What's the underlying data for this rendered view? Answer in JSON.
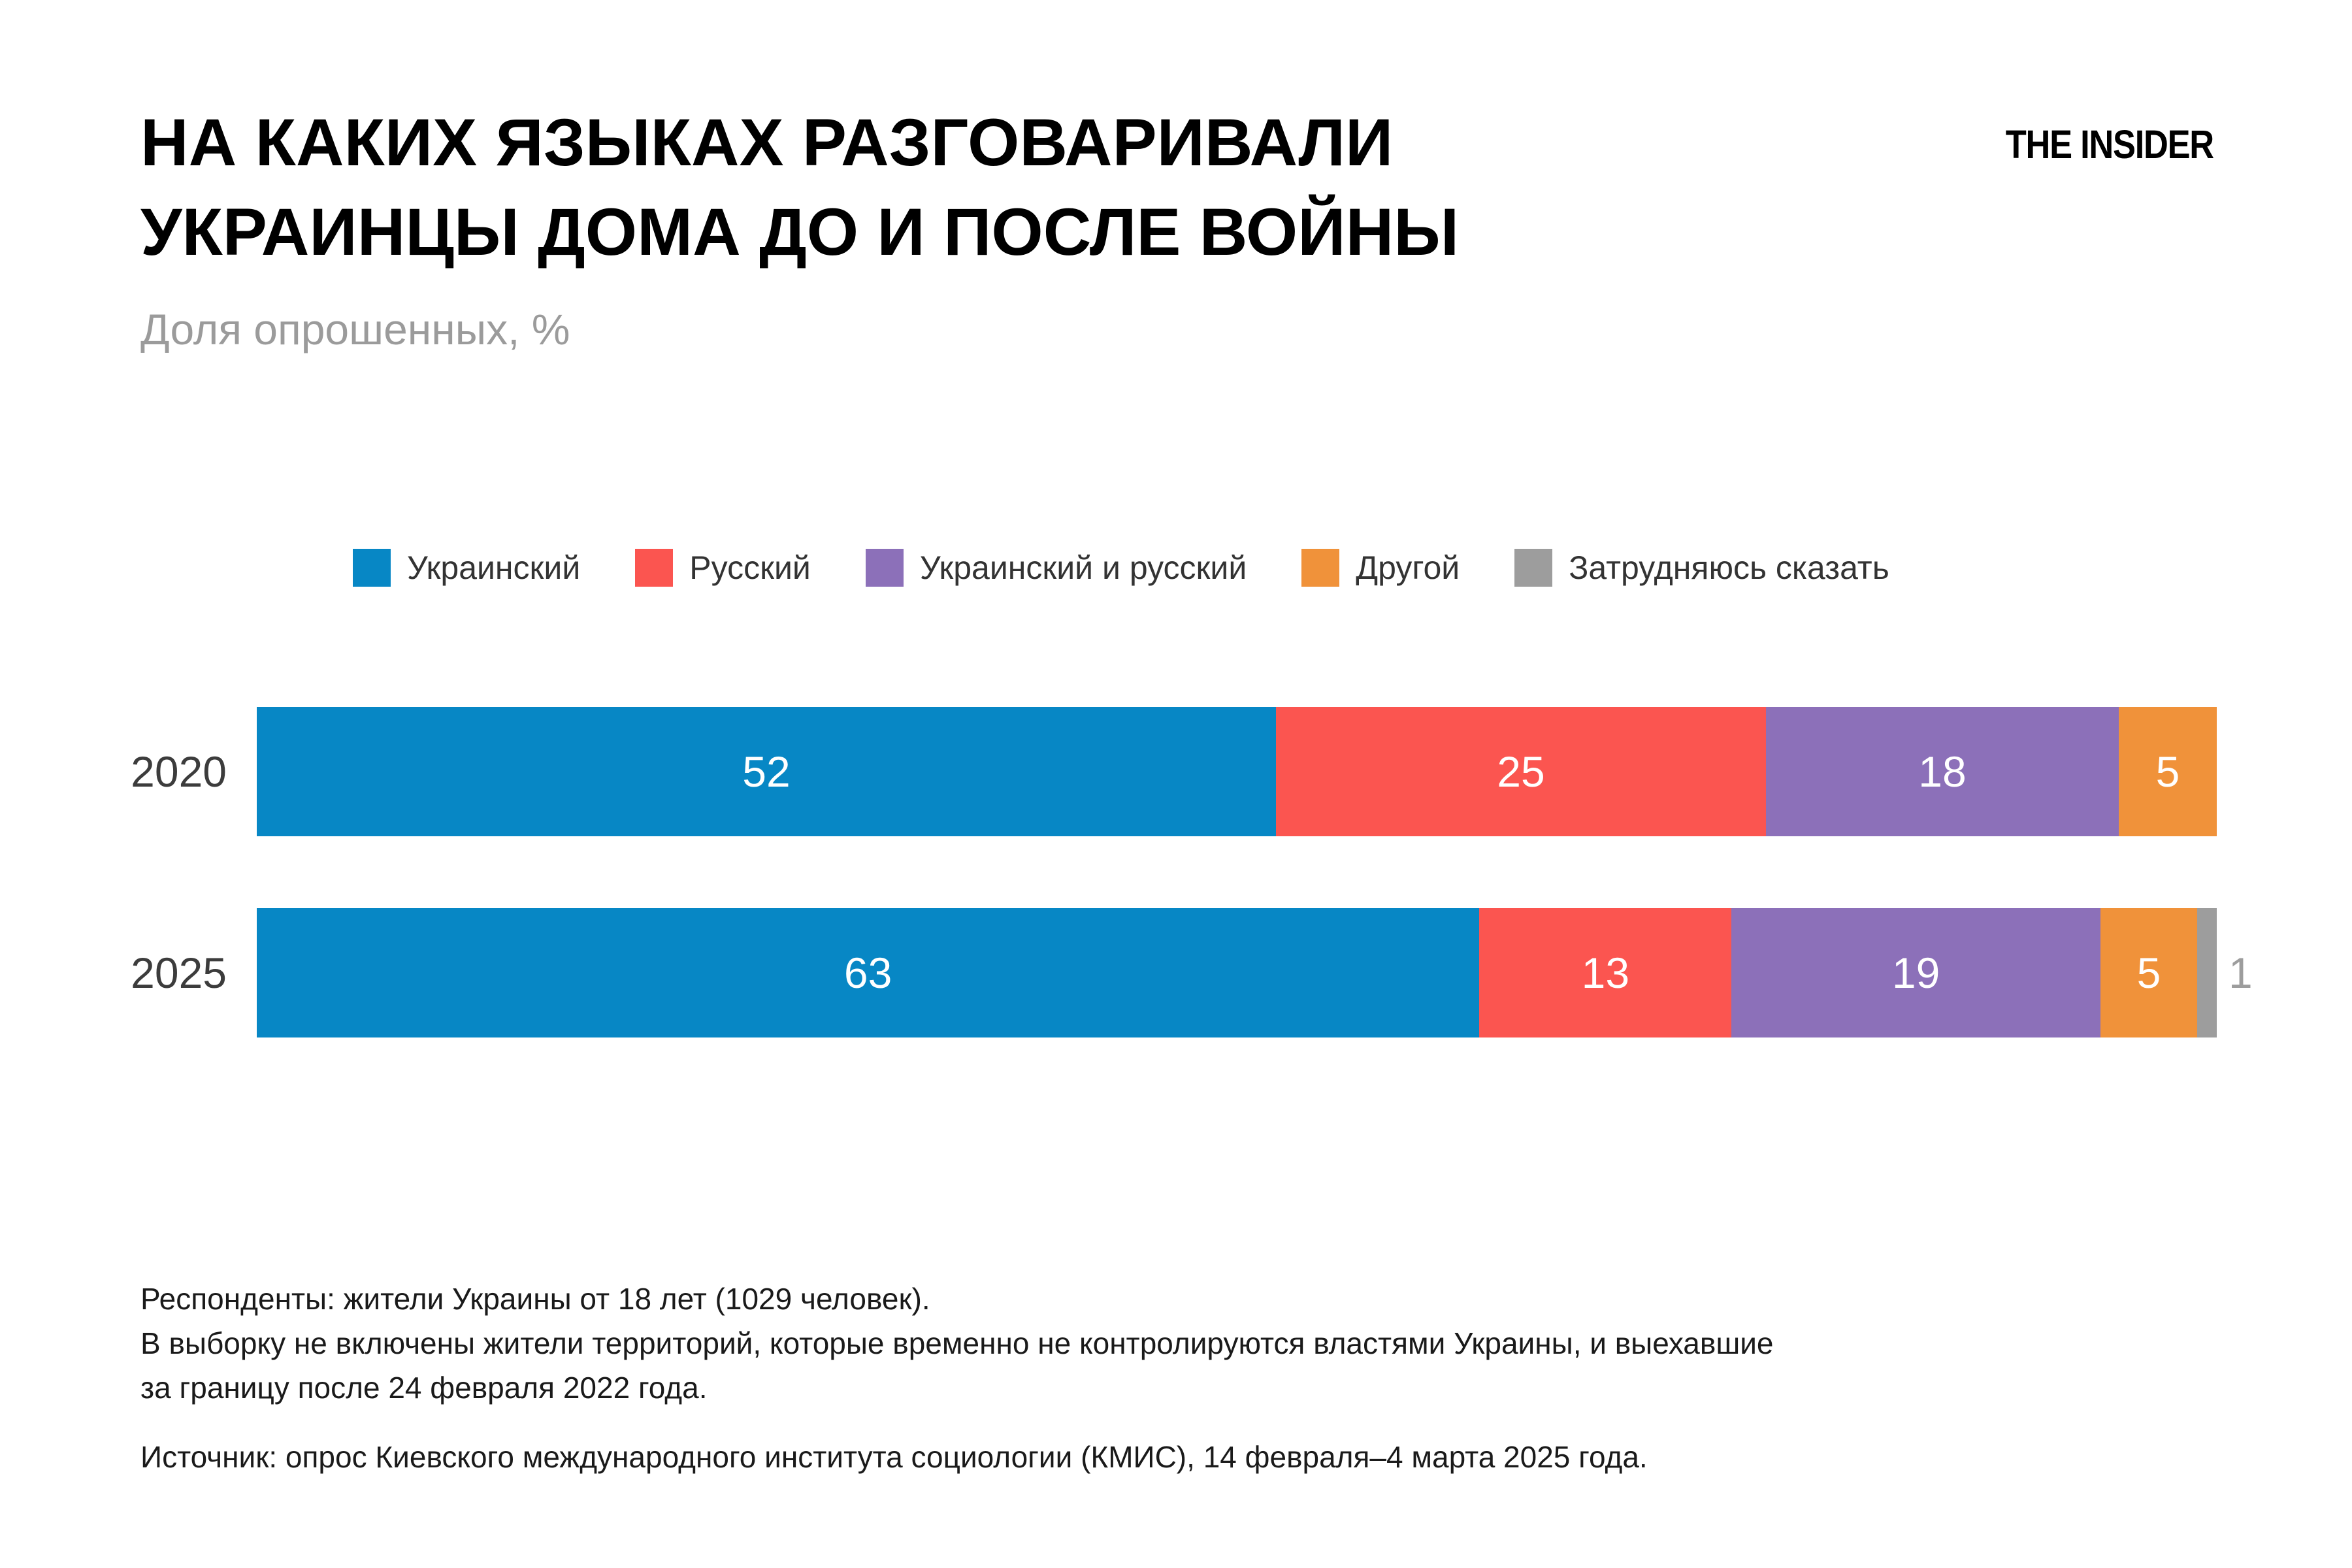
{
  "header": {
    "title_line1": "НА КАКИХ ЯЗЫКАХ РАЗГОВАРИВАЛИ",
    "title_line2": "УКРАИНЦЫ ДОМА ДО И ПОСЛЕ ВОЙНЫ",
    "subtitle": "Доля опрошенных, %",
    "brand": "THE INSIDER"
  },
  "chart_data": {
    "type": "bar",
    "orientation": "horizontal",
    "stacked": true,
    "title": "НА КАКИХ ЯЗЫКАХ РАЗГОВАРИВАЛИ УКРАИНЦЫ ДОМА ДО И ПОСЛЕ ВОЙНЫ",
    "subtitle": "Доля опрошенных, %",
    "categories": [
      "2020",
      "2025"
    ],
    "series": [
      {
        "name": "Украинский",
        "color": "#0787C5",
        "values": [
          52,
          63
        ]
      },
      {
        "name": "Русский",
        "color": "#FB5550",
        "values": [
          25,
          13
        ]
      },
      {
        "name": "Украинский и русский",
        "color": "#8C70B9",
        "values": [
          18,
          19
        ]
      },
      {
        "name": "Другой",
        "color": "#F0923A",
        "values": [
          5,
          5
        ]
      },
      {
        "name": "Затрудняюсь сказать",
        "color": "#9D9D9D",
        "values": [
          0,
          1
        ]
      }
    ],
    "xlim": [
      0,
      101
    ],
    "gridlines": false,
    "legend_position": "top",
    "value_label_style": "white inside segments; tiny values shown outside in gray"
  },
  "footnotes": {
    "line1": "Респонденты: жители Украины от 18 лет (1029 человек).",
    "line2": "В выборку не включены жители территорий, которые временно не контролируются властями Украины, и выехавшие",
    "line3": "за границу после 24 февраля 2022 года.",
    "source": "Источник: опрос Киевского международного института социологии (КМИС), 14 февраля–4 марта 2025 года."
  }
}
